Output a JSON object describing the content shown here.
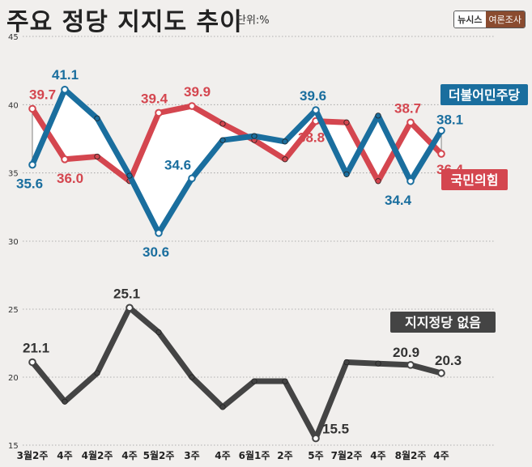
{
  "header": {
    "title": "주요 정당 지지도 추이",
    "unit": "단위:%",
    "logo_brand": "뉴시스",
    "logo_tag": "여론조사"
  },
  "colors": {
    "democratic": "#1a6e9e",
    "ppp": "#d4464f",
    "none": "#444444",
    "fill": "#ffffff",
    "grid": "#9a9a9a",
    "axis_text": "#333333"
  },
  "chart_data": [
    {
      "type": "line",
      "title": "주요 정당 지지도 추이",
      "ylim": [
        30,
        45
      ],
      "yticks": [
        30,
        35,
        40,
        45
      ],
      "categories": [
        "3월2주",
        "4주",
        "4월2주",
        "4주",
        "5월2주",
        "3주",
        "4주",
        "6월1주",
        "2주",
        "5주",
        "7월2주",
        "4주",
        "8월2주",
        "4주"
      ],
      "series": [
        {
          "name": "더불어민주당",
          "values": [
            35.6,
            41.1,
            39.0,
            34.8,
            30.6,
            34.6,
            37.4,
            37.7,
            37.3,
            39.6,
            34.9,
            39.2,
            34.4,
            38.1
          ],
          "labeled": [
            0,
            1,
            4,
            5,
            9,
            12,
            13
          ]
        },
        {
          "name": "국민의힘",
          "values": [
            39.7,
            36.0,
            36.2,
            34.4,
            39.4,
            39.9,
            38.6,
            37.4,
            36.0,
            38.8,
            38.7,
            34.4,
            38.7,
            36.4
          ],
          "labeled": [
            0,
            1,
            4,
            5,
            9,
            12,
            13
          ]
        }
      ]
    },
    {
      "type": "line",
      "ylim": [
        15,
        25
      ],
      "yticks": [
        15,
        20,
        25
      ],
      "categories": [
        "3월2주",
        "4주",
        "4월2주",
        "4주",
        "5월2주",
        "3주",
        "4주",
        "6월1주",
        "2주",
        "5주",
        "7월2주",
        "4주",
        "8월2주",
        "4주"
      ],
      "series": [
        {
          "name": "지지정당 없음",
          "values": [
            21.1,
            18.2,
            20.3,
            25.1,
            23.3,
            20.0,
            17.8,
            19.7,
            19.7,
            15.5,
            21.1,
            21.0,
            20.9,
            20.3
          ],
          "labeled": [
            0,
            3,
            9,
            12,
            13
          ]
        }
      ]
    }
  ]
}
